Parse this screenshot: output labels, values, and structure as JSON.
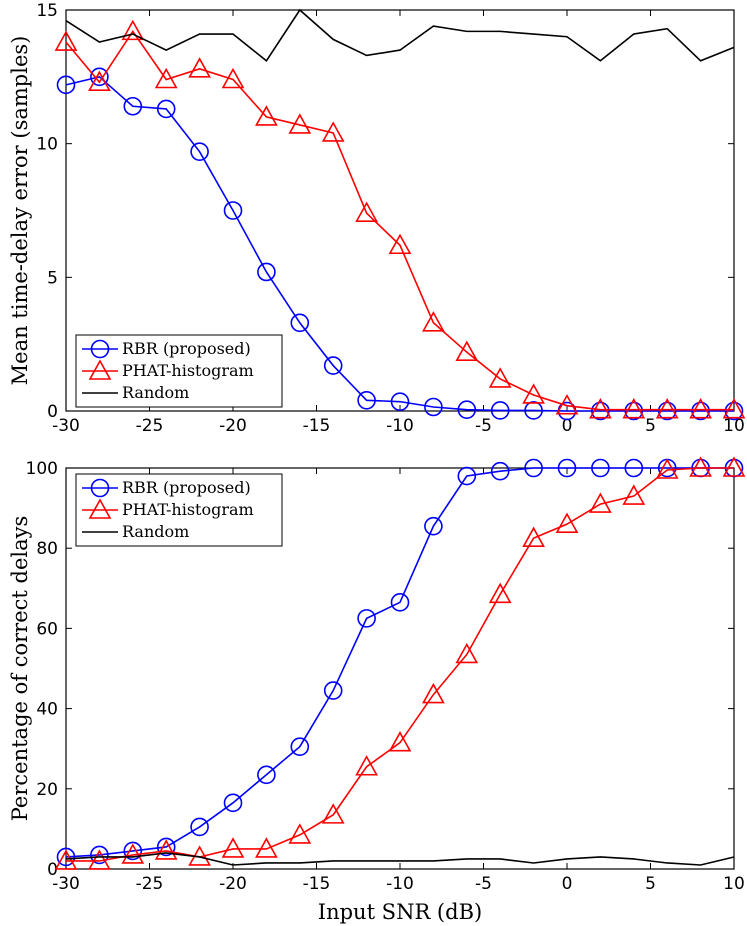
{
  "colors": {
    "rbr": "#0000ff",
    "phat": "#ff0000",
    "random": "#000000"
  },
  "chart_data": [
    {
      "type": "line",
      "title": "",
      "xlabel": "",
      "ylabel": "Mean time-delay error (samples)",
      "xlim": [
        -30,
        10
      ],
      "ylim": [
        0,
        15
      ],
      "xticks": [
        "-30",
        "-25",
        "-20",
        "-15",
        "-10",
        "-5",
        "0",
        "5",
        "10"
      ],
      "yticks": [
        "0",
        "5",
        "10",
        "15"
      ],
      "grid": false,
      "legend_position": "bottom-left",
      "x": [
        -30,
        -28,
        -26,
        -24,
        -22,
        -20,
        -18,
        -16,
        -14,
        -12,
        -10,
        -8,
        -6,
        -4,
        -2,
        0,
        2,
        4,
        6,
        8,
        10
      ],
      "series": [
        {
          "name": "RBR (proposed)",
          "marker": "circle",
          "values": [
            12.2,
            12.5,
            11.4,
            11.3,
            9.7,
            7.5,
            5.2,
            3.3,
            1.7,
            0.4,
            0.35,
            0.15,
            0.05,
            0.02,
            0.02,
            0.0,
            0.0,
            0.0,
            0.0,
            0.0,
            0.0
          ]
        },
        {
          "name": "PHAT-histogram",
          "marker": "triangle",
          "values": [
            13.8,
            12.3,
            14.2,
            12.4,
            12.8,
            12.4,
            11.0,
            10.7,
            10.4,
            7.4,
            6.2,
            3.3,
            2.2,
            1.2,
            0.6,
            0.2,
            0.05,
            0.05,
            0.05,
            0.05,
            0.05
          ]
        },
        {
          "name": "Random",
          "marker": "none",
          "x": [
            -30,
            -28,
            -26,
            -24,
            -22,
            -20,
            -18,
            -16,
            -14,
            -12,
            -10,
            -8,
            -6,
            -4,
            -2,
            0,
            2,
            4,
            6,
            8,
            10
          ],
          "values": [
            14.6,
            13.8,
            14.1,
            13.5,
            14.1,
            14.1,
            13.1,
            15.0,
            13.9,
            13.3,
            13.5,
            14.4,
            14.2,
            14.2,
            14.1,
            14.0,
            13.1,
            14.1,
            14.3,
            13.1,
            13.6
          ]
        }
      ]
    },
    {
      "type": "line",
      "title": "",
      "xlabel": "Input SNR (dB)",
      "ylabel": "Percentage of correct delays",
      "xlim": [
        -30,
        10
      ],
      "ylim": [
        0,
        100
      ],
      "xticks": [
        "-30",
        "-25",
        "-20",
        "-15",
        "-10",
        "-5",
        "0",
        "5",
        "10"
      ],
      "yticks": [
        "0",
        "20",
        "40",
        "60",
        "80",
        "100"
      ],
      "grid": false,
      "legend_position": "top-left",
      "x": [
        -30,
        -28,
        -26,
        -24,
        -22,
        -20,
        -18,
        -16,
        -14,
        -12,
        -10,
        -8,
        -6,
        -4,
        -2,
        0,
        2,
        4,
        6,
        8,
        10
      ],
      "series": [
        {
          "name": "RBR (proposed)",
          "marker": "circle",
          "values": [
            3.0,
            3.5,
            4.5,
            5.5,
            10.5,
            16.5,
            23.5,
            30.5,
            44.5,
            62.5,
            66.5,
            85.5,
            98.0,
            99.2,
            100,
            100,
            100,
            100,
            100,
            100,
            100
          ]
        },
        {
          "name": "PHAT-histogram",
          "marker": "triangle",
          "values": [
            2.0,
            2.0,
            3.5,
            4.5,
            3.0,
            5.0,
            5.0,
            8.5,
            13.5,
            25.5,
            31.5,
            43.5,
            53.5,
            68.5,
            82.5,
            86.0,
            91.0,
            93.0,
            99.5,
            100,
            100
          ]
        },
        {
          "name": "Random",
          "marker": "none",
          "x": [
            -30,
            -28,
            -26,
            -24,
            -22,
            -20,
            -18,
            -16,
            -14,
            -12,
            -10,
            -8,
            -6,
            -4,
            -2,
            0,
            2,
            4,
            6,
            8,
            10
          ],
          "values": [
            2.5,
            3.0,
            3.0,
            4.0,
            3.0,
            1.0,
            1.5,
            1.5,
            2.0,
            2.0,
            2.0,
            2.0,
            2.5,
            2.5,
            1.5,
            2.5,
            3.0,
            2.5,
            1.5,
            1.0,
            3.0
          ]
        }
      ]
    }
  ]
}
